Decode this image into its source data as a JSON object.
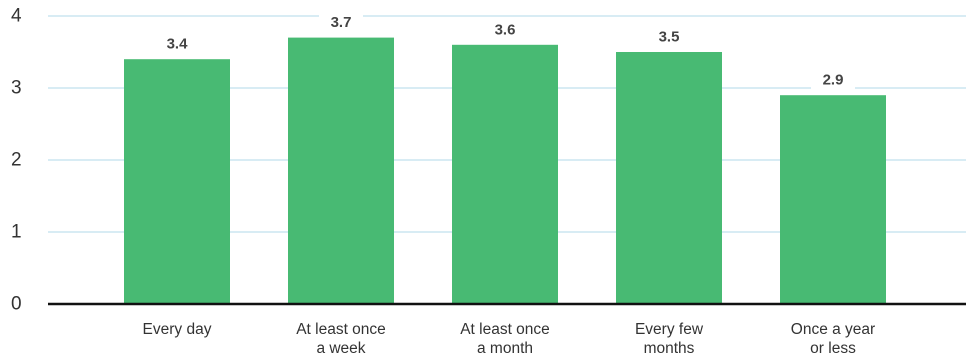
{
  "chart_data": {
    "type": "bar",
    "title": "",
    "xlabel": "",
    "ylabel": "",
    "categories": [
      [
        "Every day"
      ],
      [
        "At least once",
        "a week"
      ],
      [
        "At least once",
        "a month"
      ],
      [
        "Every few",
        "months"
      ],
      [
        "Once a year",
        "or less"
      ]
    ],
    "values": [
      3.4,
      3.7,
      3.6,
      3.5,
      2.9
    ],
    "data_labels": [
      "3.4",
      "3.7",
      "3.6",
      "3.5",
      "2.9"
    ],
    "y_ticks": [
      "0",
      "1",
      "2",
      "3",
      "4"
    ],
    "ylim": [
      0,
      4
    ],
    "grid": true,
    "legend": "none",
    "colors": {
      "bar": "#48ba73",
      "grid": "#cbe6f0",
      "axis": "#111111",
      "label_bg": "#ffffff"
    }
  }
}
